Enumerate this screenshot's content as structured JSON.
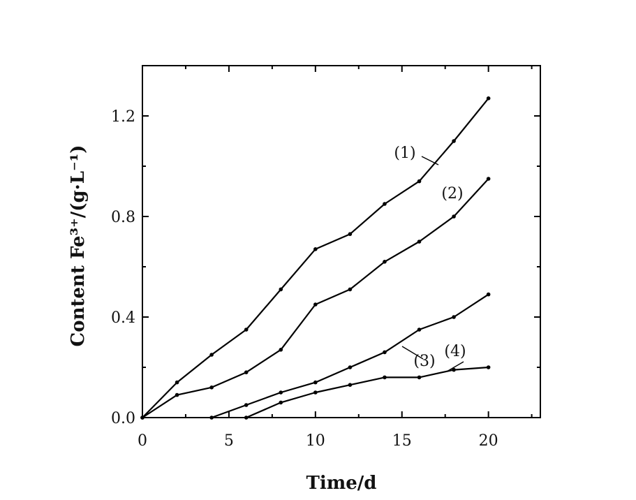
{
  "chart_data": {
    "type": "line",
    "xlabel": "Time/d",
    "ylabel": "Content Fe³⁺/(g·L⁻¹)",
    "xlim": [
      0,
      23
    ],
    "ylim": [
      0,
      1.4
    ],
    "xticks": [
      0,
      5,
      10,
      15,
      20
    ],
    "xtick_labels": [
      "0",
      "5",
      "10",
      "15",
      "20"
    ],
    "yticks": [
      0.0,
      0.4,
      0.8,
      1.2
    ],
    "ytick_labels": [
      "0.0",
      "0.4",
      "0.8",
      "1.2"
    ],
    "grid": false,
    "legend": "none",
    "series": [
      {
        "name": "(1)",
        "x": [
          0,
          2,
          4,
          6,
          8,
          10,
          12,
          14,
          16,
          18,
          20
        ],
        "y": [
          0.0,
          0.14,
          0.25,
          0.35,
          0.51,
          0.67,
          0.73,
          0.85,
          0.94,
          1.1,
          1.27
        ]
      },
      {
        "name": "(2)",
        "x": [
          0,
          2,
          4,
          6,
          8,
          10,
          12,
          14,
          16,
          18,
          20
        ],
        "y": [
          0.0,
          0.09,
          0.12,
          0.18,
          0.27,
          0.45,
          0.51,
          0.62,
          0.7,
          0.8,
          0.95
        ]
      },
      {
        "name": "(3)",
        "x": [
          4,
          6,
          8,
          10,
          12,
          14,
          16,
          18,
          20
        ],
        "y": [
          0.0,
          0.05,
          0.1,
          0.14,
          0.2,
          0.26,
          0.35,
          0.4,
          0.49
        ]
      },
      {
        "name": "(4)",
        "x": [
          6,
          8,
          10,
          12,
          14,
          16,
          18,
          20
        ],
        "y": [
          0.0,
          0.06,
          0.1,
          0.13,
          0.16,
          0.16,
          0.19,
          0.2
        ]
      }
    ],
    "series_labels": [
      "(1)",
      "(2)",
      "(3)",
      "(4)"
    ]
  }
}
